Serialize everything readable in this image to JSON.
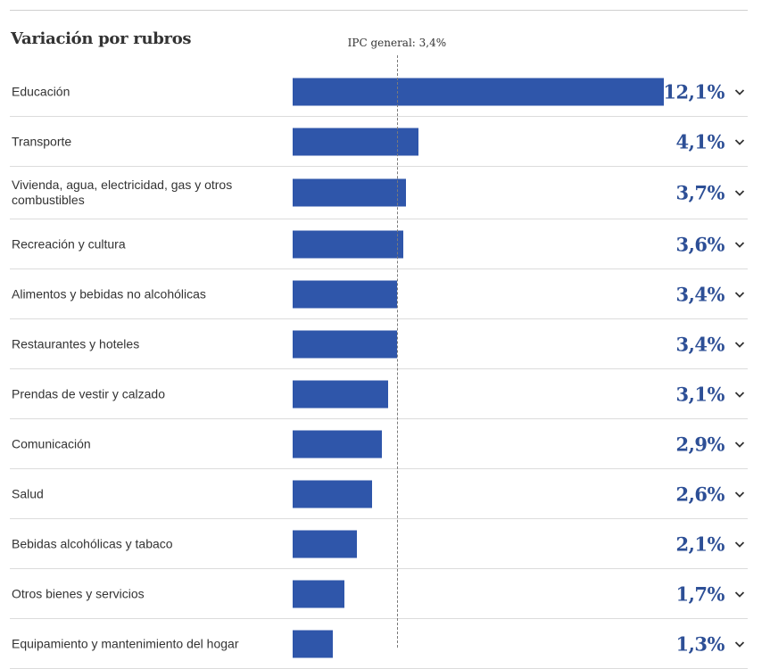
{
  "chart_data": {
    "type": "bar",
    "orientation": "horizontal",
    "title": "Variación por rubros",
    "reference_line": {
      "label": "IPC general: 3,4%",
      "value": 3.4
    },
    "categories": [
      "Educación",
      "Transporte",
      "Vivienda, agua, electricidad, gas y otros combustibles",
      "Recreación y cultura",
      "Alimentos y bebidas no alcohólicas",
      "Restaurantes y hoteles",
      "Prendas de vestir y calzado",
      "Comunicación",
      "Salud",
      "Bebidas alcohólicas y tabaco",
      "Otros bienes y servicios",
      "Equipamiento y mantenimiento del hogar"
    ],
    "values": [
      12.1,
      4.1,
      3.7,
      3.6,
      3.4,
      3.4,
      3.1,
      2.9,
      2.6,
      2.1,
      1.7,
      1.3
    ],
    "value_labels": [
      "12,1%",
      "4,1%",
      "3,7%",
      "3,6%",
      "3,4%",
      "3,4%",
      "3,1%",
      "2,9%",
      "2,6%",
      "2,1%",
      "1,7%",
      "1,3%"
    ],
    "xlim": [
      0,
      12.1
    ],
    "colors": {
      "bar": "#2f56aa",
      "value_text": "#2d4f96"
    }
  },
  "icons": {
    "row_toggle": "chevron-down-icon"
  }
}
